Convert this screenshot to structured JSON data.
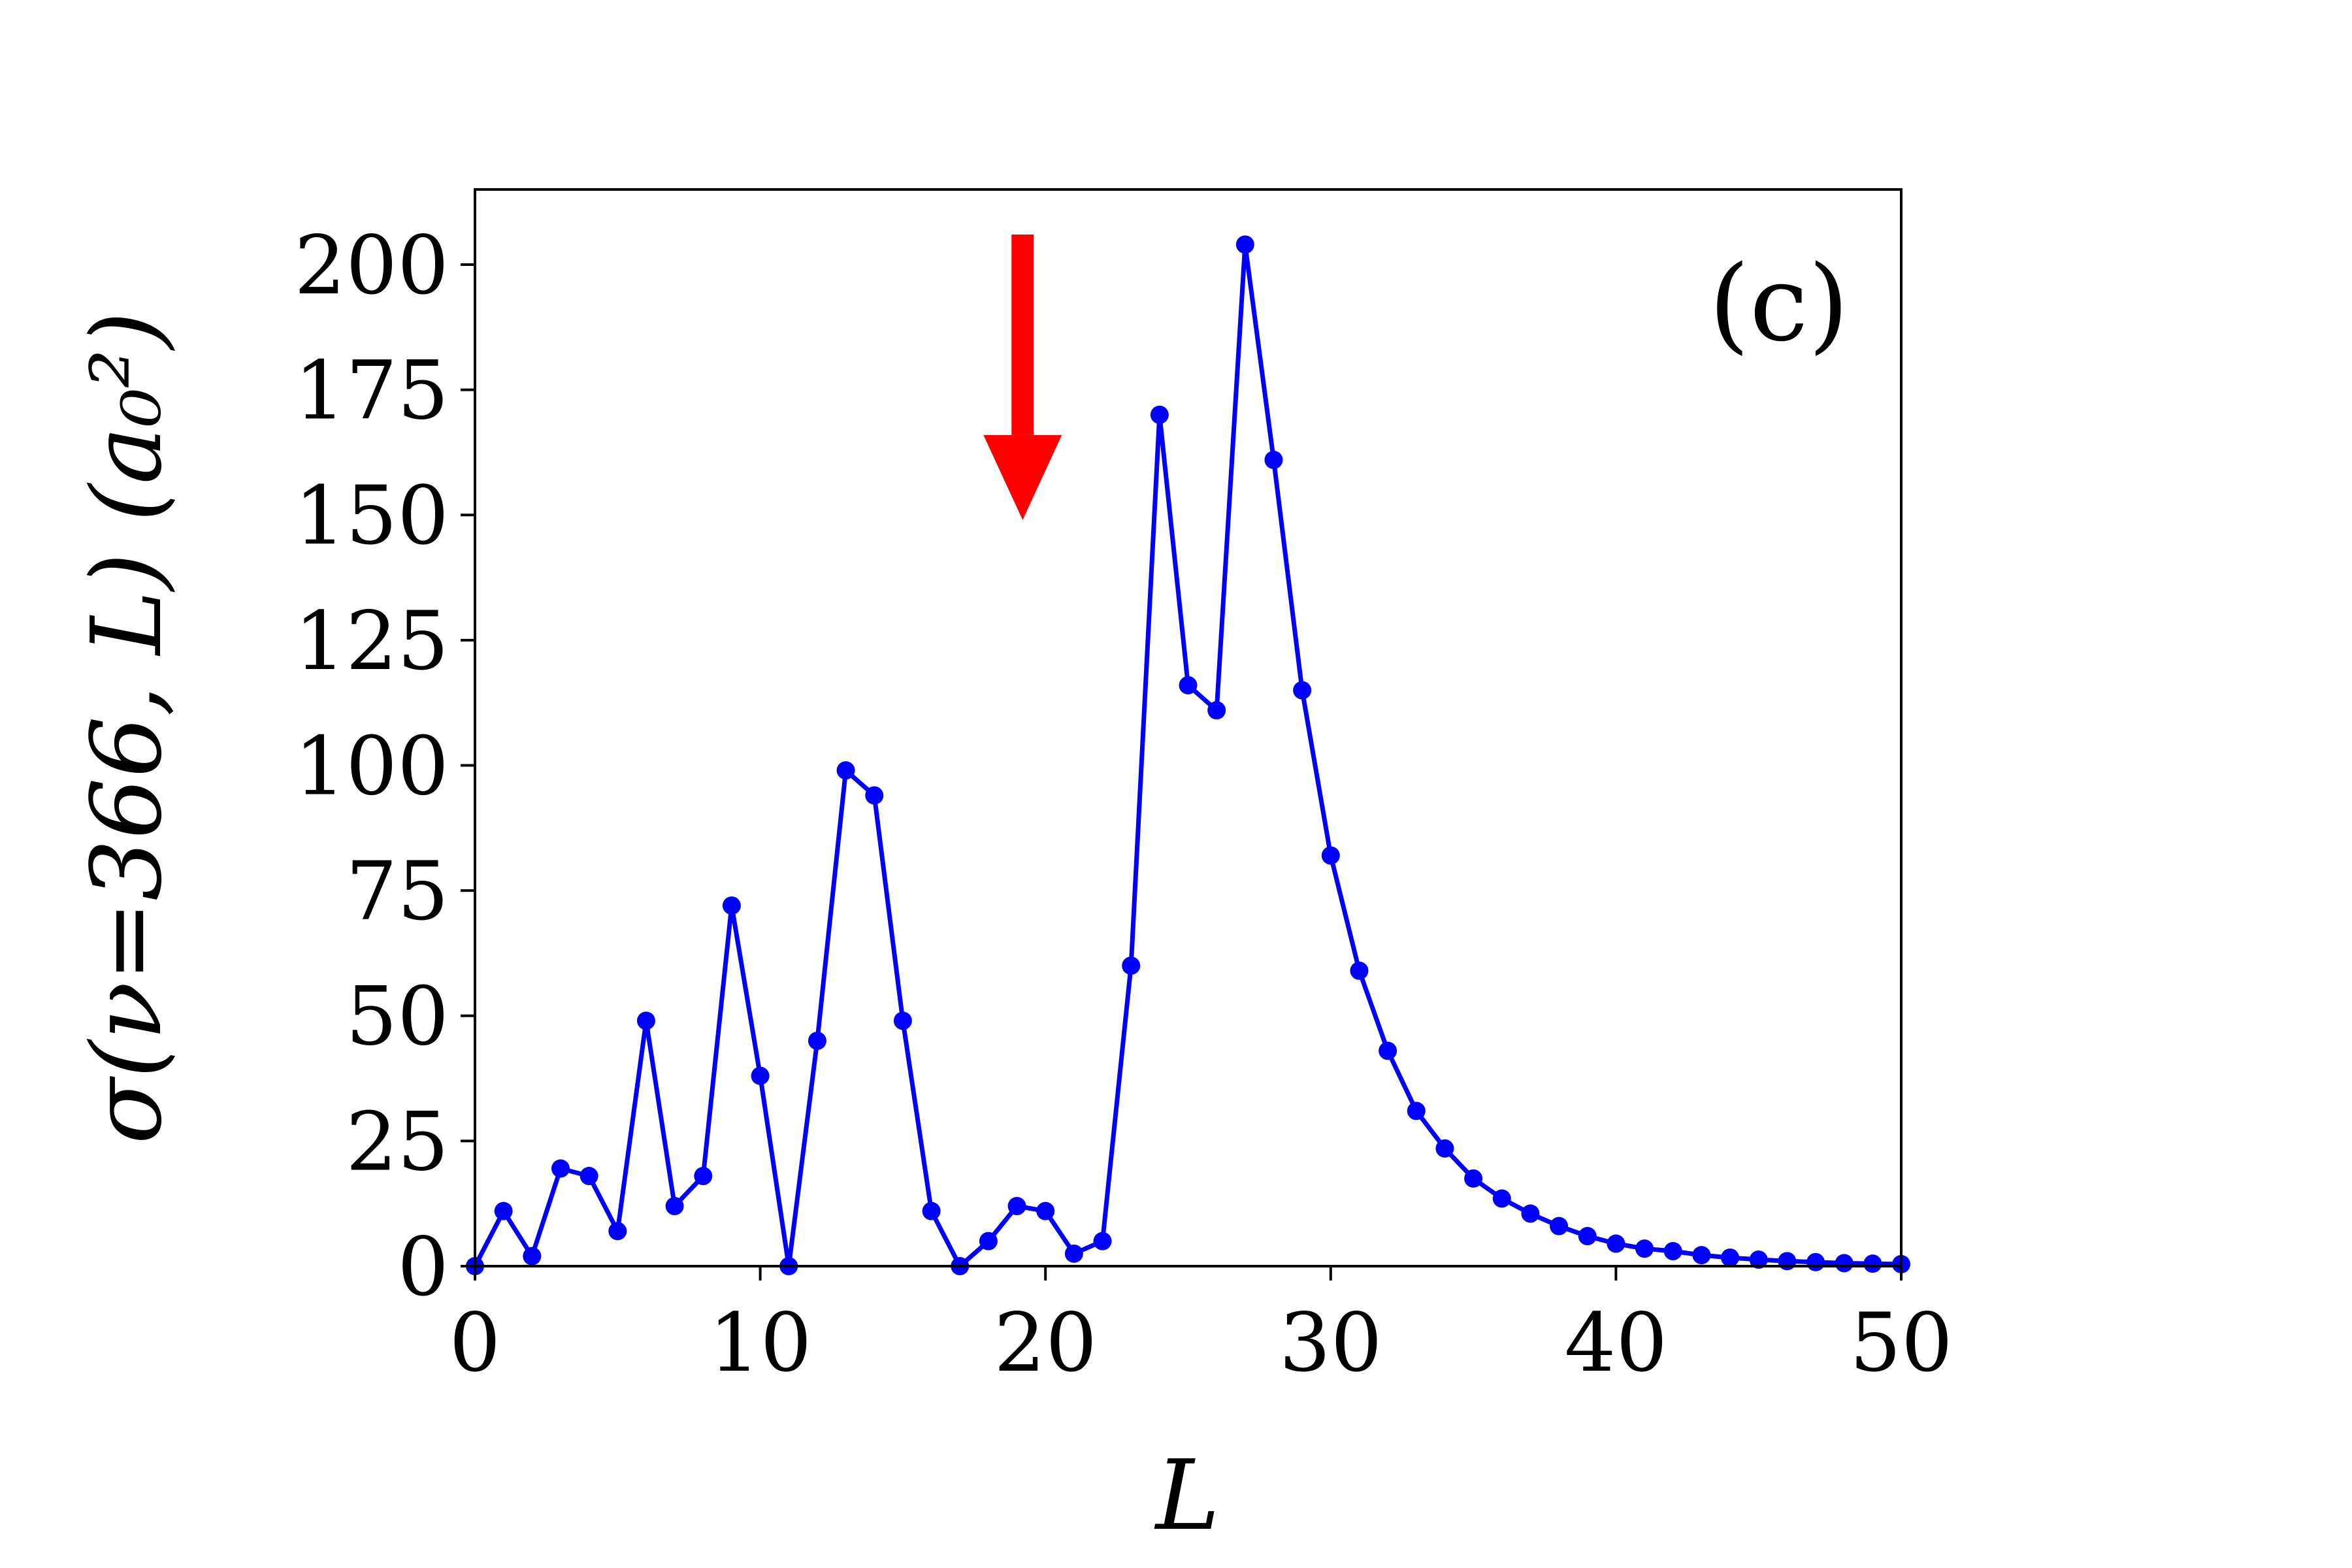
{
  "chart_data": {
    "type": "line",
    "title": "",
    "xlabel": "L",
    "ylabel": "σ(ν=366, L) (a₀²)",
    "xlim": [
      0,
      50
    ],
    "ylim": [
      0,
      215
    ],
    "xticks": [
      "0",
      "10",
      "20",
      "30",
      "40",
      "50"
    ],
    "yticks": [
      "0",
      "25",
      "50",
      "75",
      "100",
      "125",
      "150",
      "175",
      "200"
    ],
    "grid": false,
    "panel_label": "(c)",
    "series_color": "#0000ff",
    "arrow": {
      "x": 19.2,
      "y_from": 206,
      "y_to": 149,
      "color": "#ff0000"
    },
    "series": [
      {
        "x": [
          0,
          1,
          2,
          3,
          4,
          5,
          6,
          7,
          8,
          9,
          10,
          11,
          12,
          13,
          14,
          15,
          16,
          17,
          18,
          19,
          20,
          21,
          22,
          23,
          24,
          25,
          26,
          27,
          28,
          29,
          30,
          31,
          32,
          33,
          34,
          35,
          36,
          37,
          38,
          39,
          40,
          41,
          42,
          43,
          44,
          45,
          46,
          47,
          48,
          49,
          50
        ],
        "values": [
          0,
          11,
          2,
          19.5,
          18,
          7,
          49,
          12,
          18,
          72,
          38,
          0,
          45,
          99,
          94,
          49,
          11,
          0,
          5,
          12,
          11,
          2.5,
          5,
          60,
          170,
          116,
          111,
          204,
          161,
          115,
          82,
          59,
          43,
          31,
          23.5,
          17.5,
          13.5,
          10.5,
          8,
          6,
          4.5,
          3.5,
          3,
          2.2,
          1.7,
          1.3,
          1,
          0.8,
          0.6,
          0.5,
          0.4
        ]
      }
    ]
  }
}
